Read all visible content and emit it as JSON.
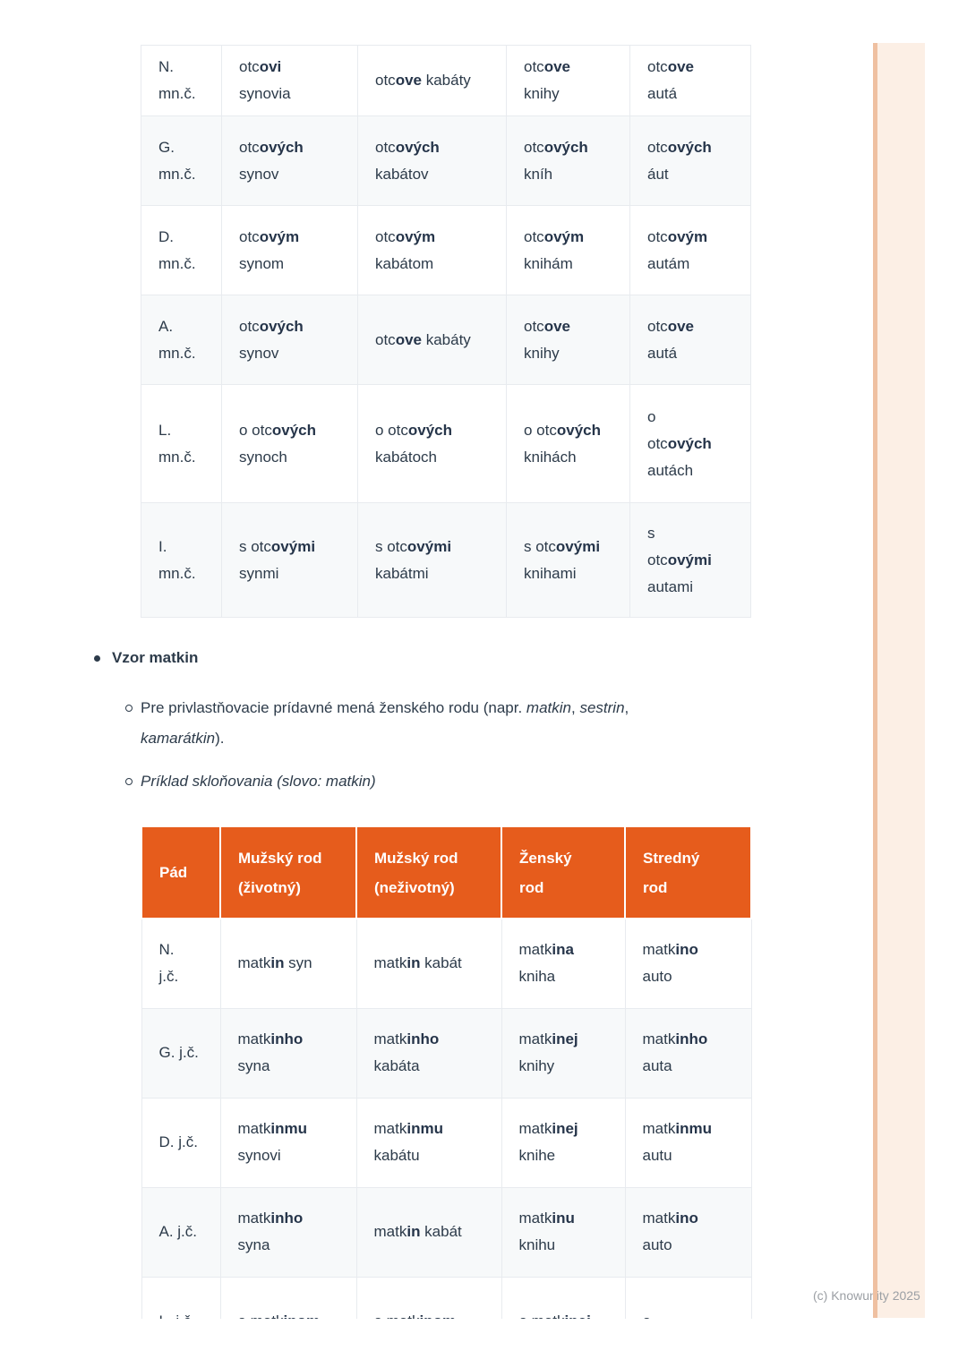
{
  "watermark": "(c) Knowunity 2025",
  "colors": {
    "accent_orange": "#e65c1c",
    "text_dark": "#2d3b4a",
    "row_alt": "#f7f9fa",
    "table_border": "#e8ebef",
    "stripe_fill": "#fcefe5",
    "stripe_edge": "#efc0a1",
    "watermark_gray": "#9b9fa4"
  },
  "bullets": {
    "title": "Vzor matkin",
    "sub1": "Pre privlastňovacie prídavné mená ženského rodu (napr. *matkin*, *sestrin*,\n*kamarátkin*).",
    "sub2": "Príklad skloňovania (slovo: matkin)"
  },
  "table_otcov": {
    "rows": [
      {
        "case": "N.\nmn.č.",
        "cells": [
          "otc**ovi**\nsynovia",
          "otc**ove** kabáty",
          "otc**ove**\nknihy",
          "otc**ove**\nautá"
        ]
      },
      {
        "case": "G.\nmn.č.",
        "cells": [
          "otc**ových**\nsynov",
          "otc**ových**\nkabátov",
          "otc**ových**\nkníh",
          "otc**ových**\náut"
        ]
      },
      {
        "case": "D.\nmn.č.",
        "cells": [
          "otc**ovým**\nsynom",
          "otc**ovým**\nkabátom",
          "otc**ovým**\nknihám",
          "otc**ovým**\nautám"
        ]
      },
      {
        "case": "A.\nmn.č.",
        "cells": [
          "otc**ových**\nsynov",
          "otc**ove** kabáty",
          "otc**ove**\nknihy",
          "otc**ove**\nautá"
        ]
      },
      {
        "case": "L.\nmn.č.",
        "cells": [
          "o otc**ových**\nsynoch",
          "o otc**ových**\nkabátoch",
          "o otc**ových**\nknihách",
          "o\notc**ových**\nautách"
        ]
      },
      {
        "case": "I.\nmn.č.",
        "cells": [
          "s otc**ovými**\nsynmi",
          "s otc**ovými**\nkabátmi",
          "s otc**ovými**\nknihami",
          "s\notc**ovými**\nautami"
        ]
      }
    ]
  },
  "table_matkin": {
    "headers": [
      "Pád",
      "Mužský rod\n(životný)",
      "Mužský rod\n(neživotný)",
      "Ženský\nrod",
      "Stredný\nrod"
    ],
    "rows": [
      {
        "case": "N.\nj.č.",
        "cells": [
          "matk**in** syn",
          "matk**in** kabát",
          "matk**ina**\nkniha",
          "matk**ino**\nauto"
        ]
      },
      {
        "case": "G. j.č.",
        "cells": [
          "matk**inho**\nsyna",
          "matk**inho**\nkabáta",
          "matk**inej**\nknihy",
          "matk**inho**\nauta"
        ]
      },
      {
        "case": "D. j.č.",
        "cells": [
          "matk**inmu**\nsynovi",
          "matk**inmu**\nkabátu",
          "matk**inej**\nknihe",
          "matk**inmu**\nautu"
        ]
      },
      {
        "case": "A. j.č.",
        "cells": [
          "matk**inho**\nsyna",
          "matk**in** kabát",
          "matk**inu**\nknihu",
          "matk**ino**\nauto"
        ]
      },
      {
        "case": "L. j.č.",
        "cells": [
          "o matk**inom**",
          "o matk**inom**",
          "o matk**inej**",
          "o"
        ]
      }
    ]
  }
}
